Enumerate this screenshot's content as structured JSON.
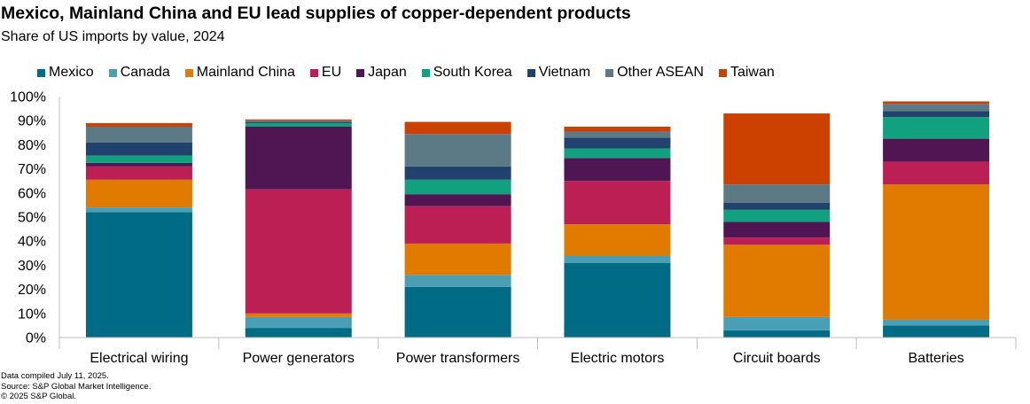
{
  "header": {
    "title": "Mexico, Mainland China and EU lead supplies of copper-dependent products",
    "subtitle": "Share of US imports by value, 2024"
  },
  "footer": {
    "lines": [
      "Data compiled July 11, 2025.",
      "Source: S&P Global Market Intelligence.",
      "© 2025 S&P Global."
    ]
  },
  "chart_data": {
    "type": "bar",
    "stacked": true,
    "title": "Mexico, Mainland China and EU lead supplies of copper-dependent products",
    "subtitle": "Share of US imports by value, 2024",
    "xlabel": "",
    "ylabel": "",
    "ylim": [
      0,
      100
    ],
    "yticks": [
      0,
      10,
      20,
      30,
      40,
      50,
      60,
      70,
      80,
      90,
      100
    ],
    "ytick_format": "%",
    "grid": false,
    "legend_position": "top",
    "categories": [
      "Electrical wiring",
      "Power generators",
      "Power transformers",
      "Electric motors",
      "Circuit boards",
      "Batteries"
    ],
    "series": [
      {
        "name": "Mexico",
        "color": "#006b85",
        "values": [
          52,
          4,
          21,
          31,
          3,
          5
        ]
      },
      {
        "name": "Canada",
        "color": "#4b9fb5",
        "values": [
          2,
          4.5,
          5,
          3,
          5.5,
          2.5
        ]
      },
      {
        "name": "Mainland China",
        "color": "#e07b00",
        "values": [
          11.5,
          1.5,
          13,
          13,
          30,
          56
        ]
      },
      {
        "name": "EU",
        "color": "#bc1f53",
        "values": [
          5.5,
          51.5,
          15.5,
          18,
          3,
          9.5
        ]
      },
      {
        "name": "Japan",
        "color": "#501654",
        "values": [
          1.5,
          26,
          5,
          9.5,
          6.5,
          9.5
        ]
      },
      {
        "name": "South Korea",
        "color": "#12a17e",
        "values": [
          3,
          1.5,
          6,
          4,
          5,
          9
        ]
      },
      {
        "name": "Vietnam",
        "color": "#22426e",
        "values": [
          5.5,
          0.5,
          5.5,
          4.5,
          3,
          2.5
        ]
      },
      {
        "name": "Other ASEAN",
        "color": "#5c7a85",
        "values": [
          6.5,
          0.5,
          13.5,
          2.5,
          7.5,
          3
        ]
      },
      {
        "name": "Taiwan",
        "color": "#cc4000",
        "values": [
          1.5,
          0.5,
          5,
          2,
          29.5,
          1
        ]
      }
    ]
  }
}
